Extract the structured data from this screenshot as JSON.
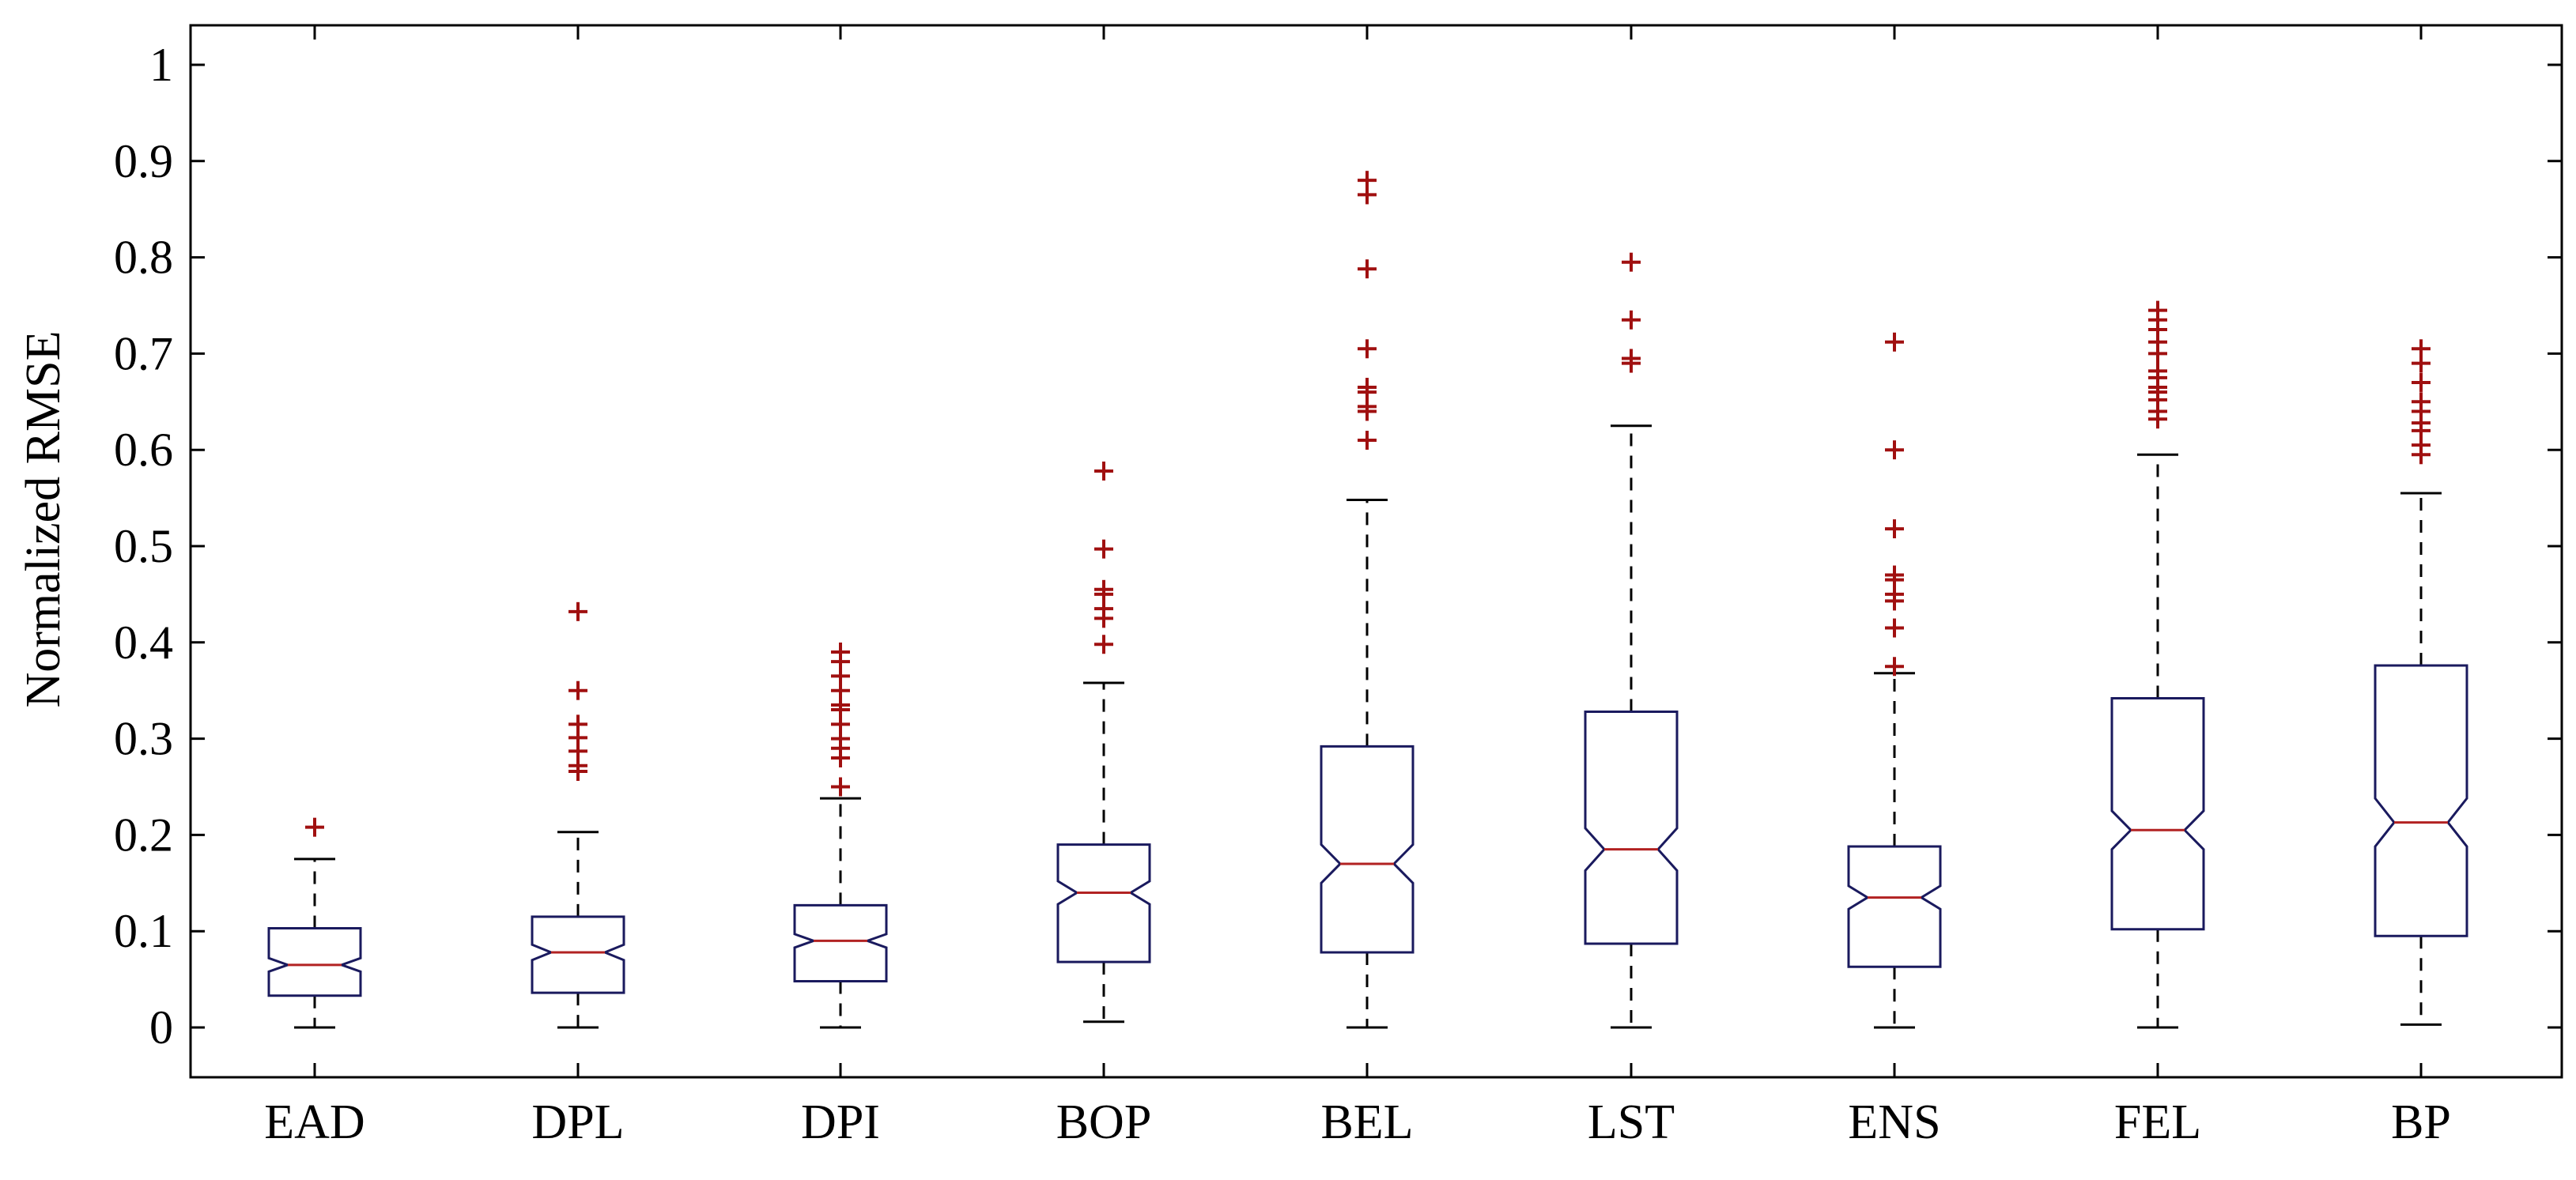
{
  "chart_data": {
    "type": "boxplot",
    "notched": true,
    "title": "",
    "xlabel": "",
    "ylabel": "Normalized RMSE",
    "ylim": [
      -0.05,
      1.05
    ],
    "yticks": [
      0,
      0.1,
      0.2,
      0.3,
      0.4,
      0.5,
      0.6,
      0.7,
      0.8,
      0.9,
      1
    ],
    "ytick_labels": [
      "0",
      "0.1",
      "0.2",
      "0.3",
      "0.4",
      "0.5",
      "0.6",
      "0.7",
      "0.8",
      "0.9",
      "1"
    ],
    "grid": false,
    "colors": {
      "box": "#1a1a5e",
      "median": "#b22222",
      "outlier": "#a01010",
      "whisker": "#000000"
    },
    "categories": [
      "EAD",
      "DPL",
      "DPI",
      "BOP",
      "BEL",
      "LST",
      "ENS",
      "FEL",
      "BP"
    ],
    "boxes": [
      {
        "name": "EAD",
        "whisker_low": 0.0,
        "q1": 0.033,
        "median": 0.065,
        "q3": 0.103,
        "whisker_high": 0.175,
        "notch_low": 0.058,
        "notch_high": 0.072,
        "outliers": [
          0.208
        ]
      },
      {
        "name": "DPL",
        "whisker_low": 0.0,
        "q1": 0.036,
        "median": 0.078,
        "q3": 0.115,
        "whisker_high": 0.203,
        "notch_low": 0.07,
        "notch_high": 0.086,
        "outliers": [
          0.266,
          0.272,
          0.287,
          0.301,
          0.315,
          0.35,
          0.432
        ]
      },
      {
        "name": "DPI",
        "whisker_low": 0.0,
        "q1": 0.048,
        "median": 0.09,
        "q3": 0.127,
        "whisker_high": 0.238,
        "notch_low": 0.083,
        "notch_high": 0.097,
        "outliers": [
          0.25,
          0.28,
          0.29,
          0.3,
          0.315,
          0.33,
          0.335,
          0.35,
          0.365,
          0.38,
          0.39
        ]
      },
      {
        "name": "BOP",
        "whisker_low": 0.006,
        "q1": 0.068,
        "median": 0.14,
        "q3": 0.19,
        "whisker_high": 0.358,
        "notch_low": 0.128,
        "notch_high": 0.152,
        "outliers": [
          0.398,
          0.425,
          0.435,
          0.45,
          0.455,
          0.497,
          0.578
        ]
      },
      {
        "name": "BEL",
        "whisker_low": 0.0,
        "q1": 0.078,
        "median": 0.17,
        "q3": 0.292,
        "whisker_high": 0.548,
        "notch_low": 0.15,
        "notch_high": 0.19,
        "outliers": [
          0.61,
          0.64,
          0.645,
          0.66,
          0.665,
          0.705,
          0.788,
          0.865,
          0.88
        ]
      },
      {
        "name": "LST",
        "whisker_low": 0.0,
        "q1": 0.087,
        "median": 0.185,
        "q3": 0.328,
        "whisker_high": 0.625,
        "notch_low": 0.163,
        "notch_high": 0.207,
        "outliers": [
          0.69,
          0.695,
          0.735,
          0.795
        ]
      },
      {
        "name": "ENS",
        "whisker_low": 0.0,
        "q1": 0.063,
        "median": 0.135,
        "q3": 0.188,
        "whisker_high": 0.368,
        "notch_low": 0.123,
        "notch_high": 0.147,
        "outliers": [
          0.375,
          0.415,
          0.443,
          0.45,
          0.465,
          0.47,
          0.518,
          0.6,
          0.712
        ]
      },
      {
        "name": "FEL",
        "whisker_low": 0.0,
        "q1": 0.102,
        "median": 0.205,
        "q3": 0.342,
        "whisker_high": 0.595,
        "notch_low": 0.185,
        "notch_high": 0.225,
        "outliers": [
          0.632,
          0.64,
          0.652,
          0.66,
          0.665,
          0.675,
          0.682,
          0.7,
          0.712,
          0.725,
          0.735,
          0.745
        ]
      },
      {
        "name": "BP",
        "whisker_low": 0.003,
        "q1": 0.095,
        "median": 0.213,
        "q3": 0.376,
        "whisker_high": 0.555,
        "notch_low": 0.188,
        "notch_high": 0.238,
        "outliers": [
          0.595,
          0.605,
          0.62,
          0.628,
          0.64,
          0.65,
          0.67,
          0.69,
          0.705
        ]
      }
    ]
  }
}
